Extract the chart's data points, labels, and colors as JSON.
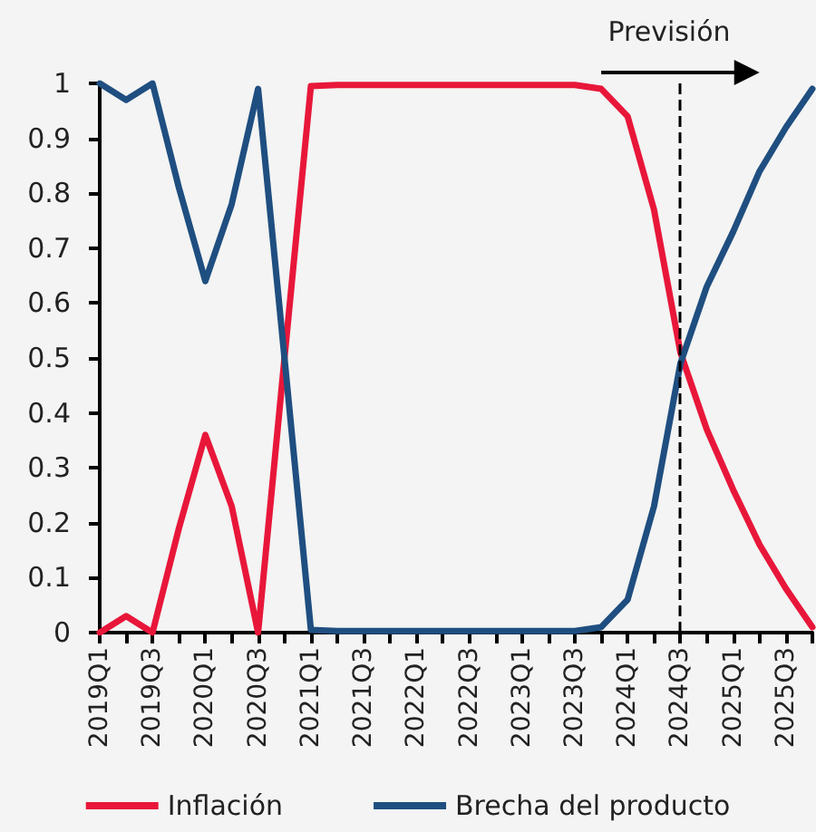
{
  "chart_data": {
    "type": "line",
    "categories": [
      "2019Q1",
      null,
      "2019Q3",
      null,
      "2020Q1",
      null,
      "2020Q3",
      null,
      "2021Q1",
      null,
      "2021Q3",
      null,
      "2022Q1",
      null,
      "2022Q3",
      null,
      "2023Q1",
      null,
      "2023Q3",
      null,
      "2024Q1",
      null,
      "2024Q3",
      null,
      "2025Q1",
      null,
      "2025Q3",
      null
    ],
    "series": [
      {
        "name": "Inflación",
        "color": "#e8173a",
        "values": [
          0,
          0.03,
          0,
          0.19,
          0.36,
          0.23,
          0,
          0.5,
          0.995,
          0.997,
          0.997,
          0.997,
          0.997,
          0.997,
          0.997,
          0.997,
          0.997,
          0.997,
          0.997,
          0.99,
          0.94,
          0.77,
          0.51,
          0.37,
          0.26,
          0.16,
          0.08,
          0.01
        ]
      },
      {
        "name": "Brecha del producto",
        "color": "#1f4e80",
        "values": [
          1,
          0.97,
          1,
          0.81,
          0.64,
          0.78,
          0.99,
          0.5,
          0.005,
          0.003,
          0.003,
          0.003,
          0.003,
          0.003,
          0.003,
          0.003,
          0.003,
          0.003,
          0.003,
          0.01,
          0.06,
          0.23,
          0.49,
          0.63,
          0.73,
          0.84,
          0.92,
          0.99
        ]
      }
    ],
    "ylim": [
      0,
      1
    ],
    "yticks": [
      0,
      0.1,
      0.2,
      0.3,
      0.4,
      0.5,
      0.6,
      0.7,
      0.8,
      0.9,
      1
    ],
    "ref_lines": [
      {
        "axis": "x",
        "value": "2024Q3",
        "color": "#000000",
        "line_style": "dashed"
      }
    ],
    "annotations": [
      "Previsión"
    ],
    "grid": false,
    "legend": "bottom",
    "marker": "none",
    "line_style": "solid"
  }
}
